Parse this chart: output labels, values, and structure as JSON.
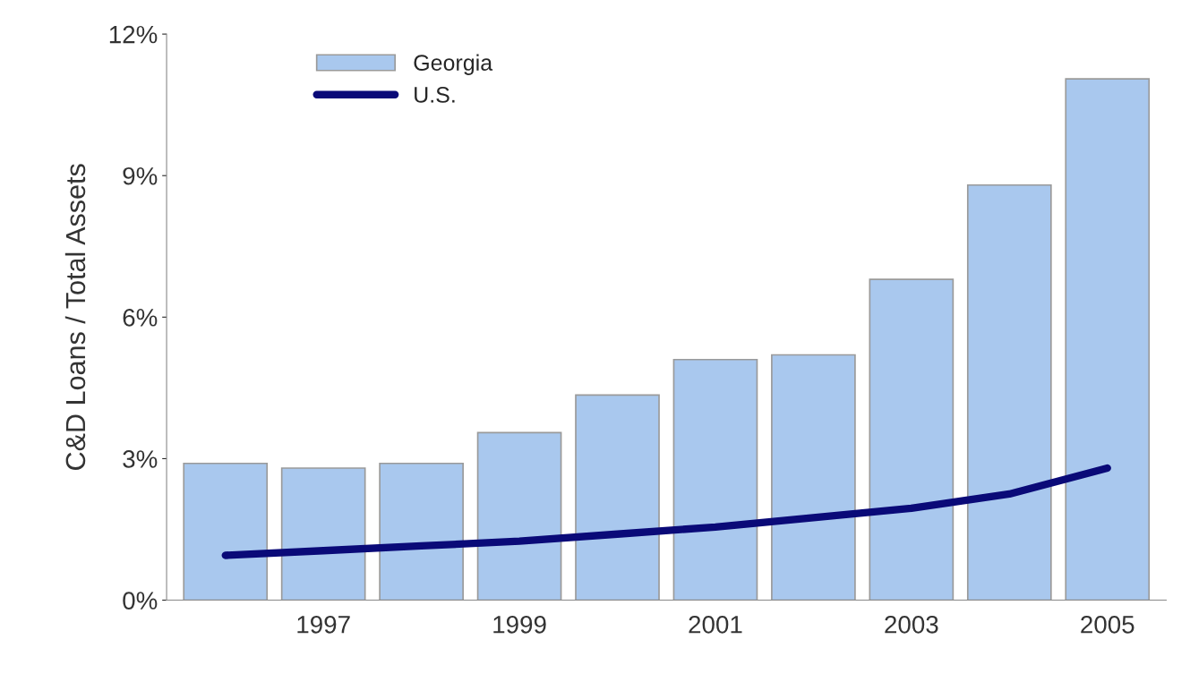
{
  "chart_data": {
    "type": "bar",
    "ylabel": "C&D Loans / Total Assets",
    "categories": [
      null,
      "1997",
      null,
      "1999",
      null,
      "2001",
      null,
      "2003",
      null,
      "2005"
    ],
    "series": [
      {
        "name": "Georgia",
        "color": "#a9c8ee",
        "values": [
          2.9,
          2.8,
          2.9,
          3.55,
          4.35,
          5.1,
          5.2,
          6.8,
          8.8,
          11.05
        ]
      },
      {
        "name": "U.S.",
        "type": "line",
        "color": "#0a0a78",
        "values": [
          0.95,
          1.05,
          1.15,
          1.25,
          1.4,
          1.55,
          1.75,
          1.95,
          2.25,
          2.8
        ]
      }
    ],
    "ylim": [
      0,
      12
    ],
    "yticks": [
      {
        "value": 0,
        "label": "0%"
      },
      {
        "value": 3,
        "label": "3%"
      },
      {
        "value": 6,
        "label": "6%"
      },
      {
        "value": 9,
        "label": "9%"
      },
      {
        "value": 12,
        "label": "12%"
      }
    ],
    "grid": false,
    "legend": "top left",
    "marker": "none",
    "line_style": "solid"
  }
}
